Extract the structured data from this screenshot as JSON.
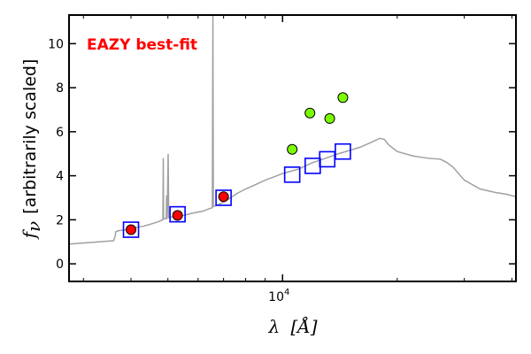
{
  "chart_data": {
    "type": "scatter",
    "title": "",
    "annotation": {
      "text": "EAZY best-fit",
      "color": "#ff0000"
    },
    "xlabel_symbol": "λ",
    "xlabel_unit": "[Å]",
    "ylabel_symbol": "f",
    "ylabel_subscript": "ν",
    "ylabel_text": "[arbitrarily scaled]",
    "xscale": "log",
    "xlim": [
      2750,
      41000
    ],
    "ylim": [
      -0.8,
      11.3
    ],
    "yticks": [
      0,
      2,
      4,
      6,
      8,
      10
    ],
    "ytick_labels": [
      "0",
      "2",
      "4",
      "6",
      "8",
      "10"
    ],
    "xticks_major": [
      10000
    ],
    "xtick_major_labels": [
      {
        "base": "10",
        "exp": "4"
      }
    ],
    "xticks_minor": [
      3000,
      4000,
      5000,
      6000,
      7000,
      8000,
      9000,
      20000,
      30000,
      40000
    ],
    "grid": false,
    "series": [
      {
        "type": "line",
        "color": "#a0a0a0",
        "x": [
          2750,
          3300,
          3600,
          3640,
          3645,
          3700,
          3900,
          4100,
          4300,
          4500,
          4700,
          4850,
          4862,
          4870,
          4950,
          4960,
          4975,
          4990,
          5007,
          5025,
          5200,
          5500,
          5800,
          6200,
          6400,
          6540,
          6563,
          6580,
          6800,
          7000,
          7300,
          7600,
          8000,
          8500,
          9000,
          9500,
          10000,
          11000,
          12000,
          13000,
          14000,
          15000,
          16000,
          17000,
          17500,
          18000,
          18500,
          19000,
          20000,
          22000,
          24000,
          26000,
          27000,
          28000,
          30000,
          33000,
          36000,
          39000,
          41000
        ],
        "y": [
          0.9,
          1.0,
          1.05,
          1.3,
          1.45,
          1.5,
          1.55,
          1.65,
          1.7,
          1.8,
          1.9,
          2.0,
          4.8,
          2.05,
          2.05,
          3.1,
          2.05,
          3.2,
          5.0,
          2.1,
          2.15,
          2.2,
          2.3,
          2.4,
          2.5,
          2.55,
          11.3,
          2.6,
          2.7,
          2.8,
          3.0,
          3.2,
          3.4,
          3.6,
          3.8,
          3.95,
          4.1,
          4.3,
          4.6,
          4.8,
          5.0,
          5.15,
          5.3,
          5.5,
          5.6,
          5.7,
          5.65,
          5.4,
          5.1,
          4.9,
          4.8,
          4.75,
          4.6,
          4.4,
          3.8,
          3.4,
          3.25,
          3.15,
          3.05
        ]
      },
      {
        "type": "scatter",
        "marker": "square",
        "color": "#0000ff",
        "x": [
          4000,
          5300,
          7000,
          10600,
          12000,
          13100,
          14400
        ],
        "y": [
          1.55,
          2.25,
          3.0,
          4.05,
          4.45,
          4.75,
          5.1
        ]
      },
      {
        "type": "scatter",
        "marker": "circle",
        "color": "#ff0000",
        "x": [
          4000,
          5300,
          7000
        ],
        "y": [
          1.55,
          2.2,
          3.05
        ]
      },
      {
        "type": "scatter",
        "marker": "circle",
        "color": "#7cfc00",
        "x": [
          10600,
          11800,
          13300,
          14400
        ],
        "y": [
          5.2,
          6.85,
          6.6,
          7.55
        ]
      }
    ]
  }
}
